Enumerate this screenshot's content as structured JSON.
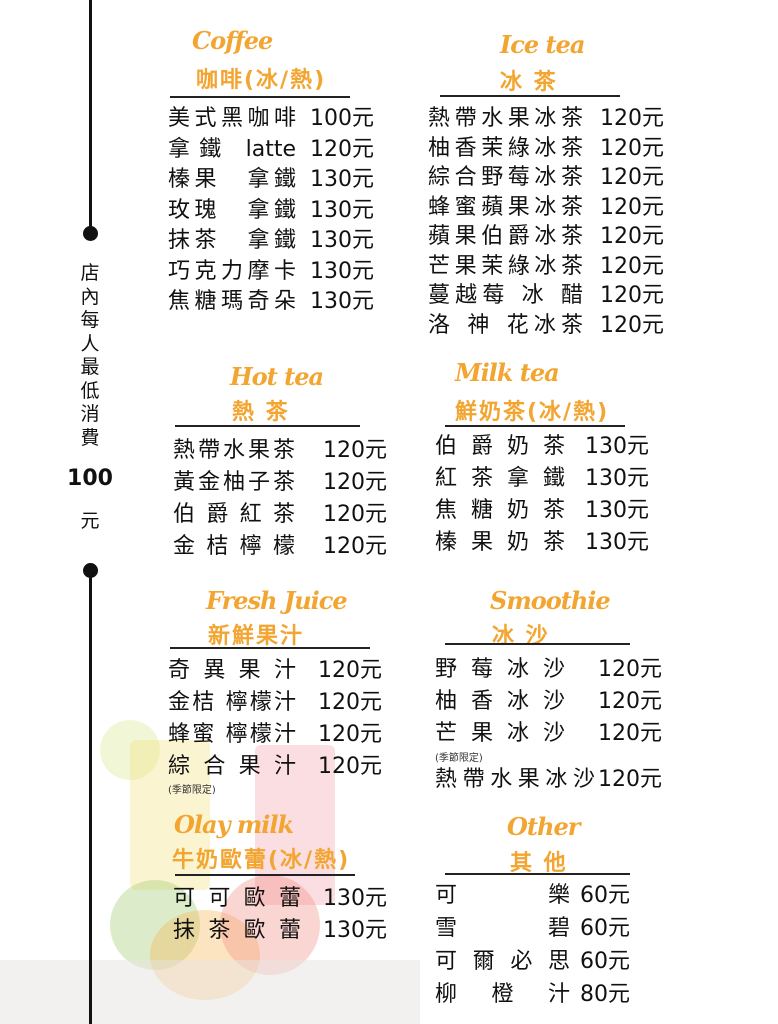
{
  "sidebar": {
    "min_spend_text": "店內每人最低消費",
    "min_spend_amount": "100",
    "min_spend_unit": "元"
  },
  "accent_color": "#f2a531",
  "sections": {
    "coffee": {
      "title_en": "Coffee",
      "title_zh": "咖啡(冰/熱)",
      "items": [
        {
          "name": "美式黑咖啡",
          "price": "100元"
        },
        {
          "name": "拿 鐵　latte",
          "price": "120元"
        },
        {
          "name": "榛果　拿鐵",
          "price": "130元"
        },
        {
          "name": "玫瑰　拿鐵",
          "price": "130元"
        },
        {
          "name": "抹茶　拿鐵",
          "price": "130元"
        },
        {
          "name": "巧克力摩卡",
          "price": "130元"
        },
        {
          "name": "焦糖瑪奇朵",
          "price": "130元"
        }
      ]
    },
    "ice_tea": {
      "title_en": "Ice tea",
      "title_zh": "冰 茶",
      "items": [
        {
          "name": "熱帶水果冰茶",
          "price": "120元"
        },
        {
          "name": "柚香茉綠冰茶",
          "price": "120元"
        },
        {
          "name": "綜合野莓冰茶",
          "price": "120元"
        },
        {
          "name": "蜂蜜蘋果冰茶",
          "price": "120元"
        },
        {
          "name": "蘋果伯爵冰茶",
          "price": "120元"
        },
        {
          "name": "芒果茉綠冰茶",
          "price": "120元"
        },
        {
          "name": "蔓越莓 冰 醋",
          "price": "120元"
        },
        {
          "name": "洛 神 花冰茶",
          "price": "120元"
        }
      ]
    },
    "hot_tea": {
      "title_en": "Hot tea",
      "title_zh": "熱 茶",
      "items": [
        {
          "name": "熱帶水果茶",
          "price": "120元"
        },
        {
          "name": "黃金柚子茶",
          "price": "120元"
        },
        {
          "name": "伯爵紅茶",
          "price": "120元"
        },
        {
          "name": "金桔檸檬",
          "price": "120元"
        }
      ]
    },
    "milk_tea": {
      "title_en": "Milk tea",
      "title_zh": "鮮奶茶(冰/熱)",
      "items": [
        {
          "name": "伯爵奶茶",
          "price": "130元"
        },
        {
          "name": "紅茶拿鐵",
          "price": "130元"
        },
        {
          "name": "焦糖奶茶",
          "price": "130元"
        },
        {
          "name": "榛果奶茶",
          "price": "130元"
        }
      ]
    },
    "fresh_juice": {
      "title_en": "Fresh Juice",
      "title_zh": "新鮮果汁",
      "items": [
        {
          "name": "奇異果汁",
          "price": "120元"
        },
        {
          "name": "金桔 檸檬汁",
          "price": "120元"
        },
        {
          "name": "蜂蜜 檸檬汁",
          "price": "120元"
        },
        {
          "name": "綜合果汁",
          "price": "120元",
          "note": "(季節限定)"
        }
      ]
    },
    "smoothie": {
      "title_en": "Smoothie",
      "title_zh": "冰 沙",
      "items": [
        {
          "name": "野莓冰沙",
          "price": "120元"
        },
        {
          "name": "柚香冰沙",
          "price": "120元"
        },
        {
          "name": "芒果冰沙",
          "price": "120元",
          "note": "(季節限定)"
        },
        {
          "name": "熱帶水果冰沙",
          "price": "120元"
        }
      ]
    },
    "olay_milk": {
      "title_en": "Olay milk",
      "title_zh": "牛奶歐蕾(冰/熱)",
      "items": [
        {
          "name": "可可歐蕾",
          "price": "130元"
        },
        {
          "name": "抹茶歐蕾",
          "price": "130元"
        }
      ]
    },
    "other": {
      "title_en": "Other",
      "title_zh": "其 他",
      "items": [
        {
          "name": "可樂",
          "price": "60元"
        },
        {
          "name": "雪碧",
          "price": "60元"
        },
        {
          "name": "可爾必思",
          "price": "60元"
        },
        {
          "name": "柳橙汁",
          "price": "80元"
        }
      ]
    }
  }
}
